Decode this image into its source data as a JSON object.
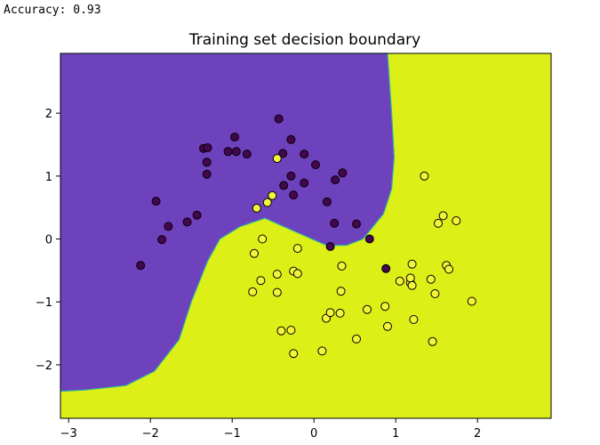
{
  "output": {
    "accuracy_line": "Accuracy: 0.93"
  },
  "colors": {
    "class0_region": "#6f42bd",
    "class1_region": "#dcef17",
    "class0_point": "#44064f",
    "class1_point": "#f3f53a",
    "boundary": "#2bb3a2"
  },
  "chart_data": {
    "type": "scatter",
    "title": "Training set decision boundary",
    "xlabel": "",
    "ylabel": "",
    "xlim": [
      -3.1,
      2.9
    ],
    "ylim": [
      -2.85,
      2.95
    ],
    "xticks": [
      -3,
      -2,
      -1,
      0,
      1,
      2
    ],
    "xtick_labels": [
      "−3",
      "−2",
      "−1",
      "0",
      "1",
      "2"
    ],
    "yticks": [
      -2,
      -1,
      0,
      1,
      2
    ],
    "ytick_labels": [
      "−2",
      "−1",
      "0",
      "1",
      "2"
    ],
    "grid": false,
    "decision_boundary": [
      [
        -2.85,
        2.95
      ],
      [
        -2.0,
        2.95
      ],
      [
        0.9,
        2.95
      ],
      [
        0.95,
        2.0
      ],
      [
        0.98,
        1.3
      ],
      [
        0.95,
        0.8
      ],
      [
        0.85,
        0.4
      ],
      [
        0.6,
        0.0
      ],
      [
        0.4,
        -0.1
      ],
      [
        0.15,
        -0.1
      ],
      [
        -0.2,
        0.1
      ],
      [
        -0.6,
        0.33
      ],
      [
        -0.9,
        0.2
      ],
      [
        -1.15,
        0.0
      ],
      [
        -1.3,
        -0.35
      ],
      [
        -1.5,
        -1.0
      ],
      [
        -1.65,
        -1.6
      ],
      [
        -1.95,
        -2.1
      ],
      [
        -2.3,
        -2.33
      ],
      [
        -2.8,
        -2.4
      ],
      [
        -3.1,
        -2.42
      ]
    ],
    "regions": [
      {
        "name": "class 0",
        "side": "upper-left",
        "color": "#6f42bd"
      },
      {
        "name": "class 1",
        "side": "lower-right",
        "color": "#dcef17"
      }
    ],
    "series": [
      {
        "class": 0,
        "points": [
          [
            -2.12,
            -0.42
          ],
          [
            -1.93,
            0.6
          ],
          [
            -1.86,
            -0.01
          ],
          [
            -1.78,
            0.2
          ],
          [
            -1.55,
            0.27
          ],
          [
            -1.43,
            0.38
          ],
          [
            -1.35,
            1.44
          ],
          [
            -1.3,
            1.45
          ],
          [
            -1.31,
            1.22
          ],
          [
            -1.31,
            1.03
          ],
          [
            -1.05,
            1.39
          ],
          [
            -0.97,
            1.62
          ],
          [
            -0.95,
            1.39
          ],
          [
            -0.82,
            1.35
          ],
          [
            -0.43,
            1.91
          ],
          [
            -0.38,
            1.36
          ],
          [
            -0.37,
            0.85
          ],
          [
            -0.28,
            1.58
          ],
          [
            -0.28,
            1.0
          ],
          [
            -0.25,
            0.7
          ],
          [
            -0.12,
            0.89
          ],
          [
            -0.12,
            1.35
          ],
          [
            0.02,
            1.18
          ],
          [
            0.16,
            0.59
          ],
          [
            0.2,
            -0.12
          ],
          [
            0.26,
            0.94
          ],
          [
            0.25,
            0.25
          ],
          [
            0.35,
            1.05
          ],
          [
            0.52,
            0.24
          ],
          [
            0.68,
            0.0
          ],
          [
            0.88,
            -0.47
          ]
        ]
      },
      {
        "class": 1,
        "points": [
          [
            -0.7,
            0.49
          ],
          [
            -0.57,
            0.58
          ],
          [
            -0.51,
            0.69
          ],
          [
            -0.45,
            1.28
          ],
          [
            -0.73,
            -0.23
          ],
          [
            -0.63,
            0.0
          ],
          [
            -0.75,
            -0.84
          ],
          [
            -0.65,
            -0.66
          ],
          [
            -0.45,
            -0.56
          ],
          [
            -0.45,
            -0.85
          ],
          [
            -0.4,
            -1.46
          ],
          [
            -0.28,
            -1.45
          ],
          [
            -0.25,
            -0.51
          ],
          [
            -0.2,
            -0.55
          ],
          [
            -0.2,
            -0.15
          ],
          [
            -0.25,
            -1.82
          ],
          [
            0.1,
            -1.78
          ],
          [
            0.15,
            -1.26
          ],
          [
            0.2,
            -1.17
          ],
          [
            0.32,
            -1.18
          ],
          [
            0.33,
            -0.83
          ],
          [
            0.34,
            -0.43
          ],
          [
            0.52,
            -1.59
          ],
          [
            0.65,
            -1.12
          ],
          [
            0.87,
            -1.07
          ],
          [
            0.9,
            -1.39
          ],
          [
            1.05,
            -0.67
          ],
          [
            1.18,
            -0.7
          ],
          [
            1.18,
            -0.62
          ],
          [
            1.22,
            -1.28
          ],
          [
            1.2,
            -0.4
          ],
          [
            1.2,
            -0.74
          ],
          [
            1.35,
            1.0
          ],
          [
            1.43,
            -0.64
          ],
          [
            1.45,
            -1.63
          ],
          [
            1.48,
            -0.87
          ],
          [
            1.52,
            0.25
          ],
          [
            1.58,
            0.37
          ],
          [
            1.62,
            -0.42
          ],
          [
            1.65,
            -0.48
          ],
          [
            1.74,
            0.29
          ],
          [
            1.93,
            -0.99
          ]
        ]
      }
    ]
  }
}
